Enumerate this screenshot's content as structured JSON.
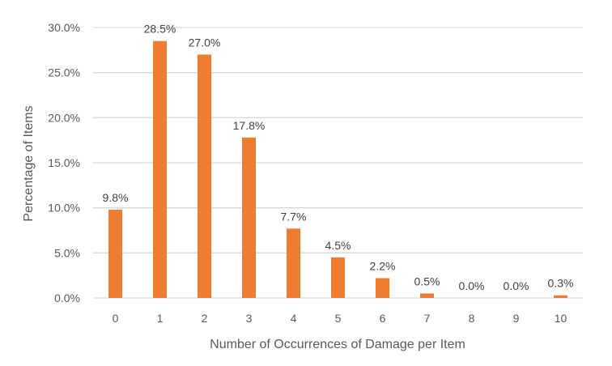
{
  "chart_data": {
    "type": "bar",
    "title": "",
    "xlabel": "Number of Occurrences of Damage per Item",
    "ylabel": "Percentage of Items",
    "categories": [
      "0",
      "1",
      "2",
      "3",
      "4",
      "5",
      "6",
      "7",
      "8",
      "9",
      "10"
    ],
    "values": [
      9.8,
      28.5,
      27.0,
      17.8,
      7.7,
      4.5,
      2.2,
      0.5,
      0.0,
      0.0,
      0.3
    ],
    "data_labels": [
      "9.8%",
      "28.5%",
      "27.0%",
      "17.8%",
      "7.7%",
      "4.5%",
      "2.2%",
      "0.5%",
      "0.0%",
      "0.0%",
      "0.3%"
    ],
    "yticks": [
      "0.0%",
      "5.0%",
      "10.0%",
      "15.0%",
      "20.0%",
      "25.0%",
      "30.0%"
    ],
    "ylim": [
      0,
      30
    ],
    "grid": true,
    "legend": null,
    "bar_color": "#ED7D31",
    "grid_color": "#D9D9D9"
  }
}
